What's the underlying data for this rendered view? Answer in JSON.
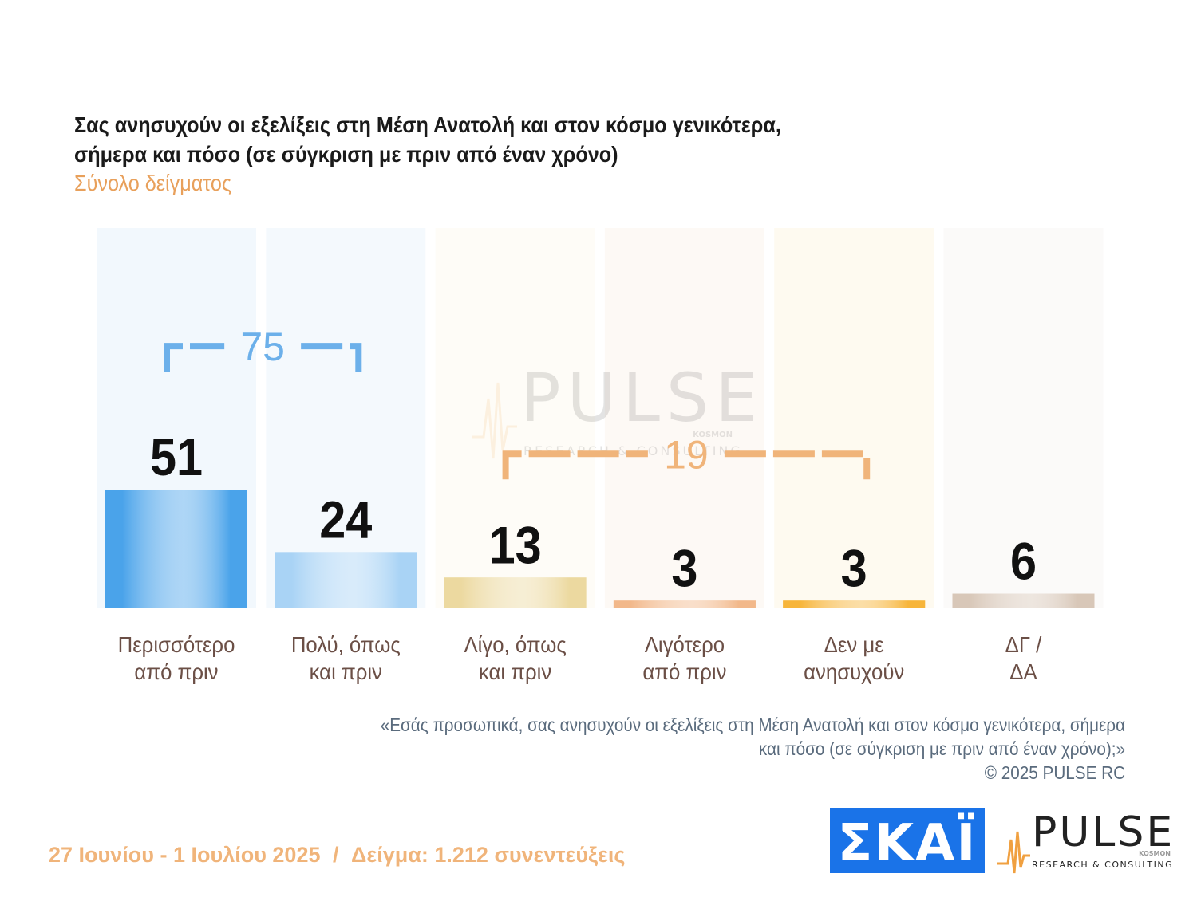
{
  "header": {
    "title_line1": "Σας ανησυχούν οι εξελίξεις στη Μέση Ανατολή και στον κόσμο γενικότερα,",
    "title_line2": "σήμερα και πόσο  (σε σύγκριση με πριν από έναν χρόνο)",
    "subtitle": "Σύνολο δείγματος"
  },
  "chart_data": {
    "type": "bar",
    "categories": [
      [
        "Περισσότερο",
        "από πριν"
      ],
      [
        "Πολύ, όπως",
        "και πριν"
      ],
      [
        "Λίγο, όπως",
        "και πριν"
      ],
      [
        "Λιγότερο",
        "από πριν"
      ],
      [
        "Δεν με",
        "ανησυχούν"
      ],
      [
        "ΔΓ /",
        "ΔΑ"
      ]
    ],
    "values": [
      51,
      24,
      13,
      3,
      3,
      6
    ],
    "groups": [
      {
        "label": "75",
        "from": 0,
        "to": 1,
        "color": "#6cb0ea"
      },
      {
        "label": "19",
        "from": 2,
        "to": 4,
        "color": "#f0b47a"
      }
    ],
    "colors": {
      "bars": [
        "#4aa3ea",
        "#a9d3f5",
        "#ecd9a0",
        "#f2b88a",
        "#f7b53a",
        "#d8c7b8"
      ],
      "backgrounds": [
        "#f2f8fd",
        "#f4f9fd",
        "#fefcf7",
        "#fdf9f5",
        "#fefaf0",
        "#fbfaf9"
      ],
      "label_text": "#6b4f46",
      "value_text": "#111111"
    }
  },
  "watermark": {
    "name": "PULSE",
    "tagline": "RESEARCH & CONSULTING",
    "small": "KOSMON"
  },
  "note": {
    "line1": "«Εσάς προσωπικά, σας ανησυχούν οι εξελίξεις στη Μέση Ανατολή και στον κόσμο γενικότερα, σήμερα",
    "line2": "και πόσο (σε σύγκριση με πριν από έναν χρόνο);»",
    "line3": "©  2025  PULSE RC"
  },
  "footer": {
    "dates": "27 Ιουνίου - 1 Ιουλίου 2025",
    "separator": "/",
    "sample": "Δείγμα:  1.212 συνεντεύξεις",
    "skai_logo": "ΣΚΑΪ",
    "pulse_logo": "PULSE",
    "pulse_tagline": "RESEARCH & CONSULTING",
    "pulse_small": "KOSMON"
  }
}
